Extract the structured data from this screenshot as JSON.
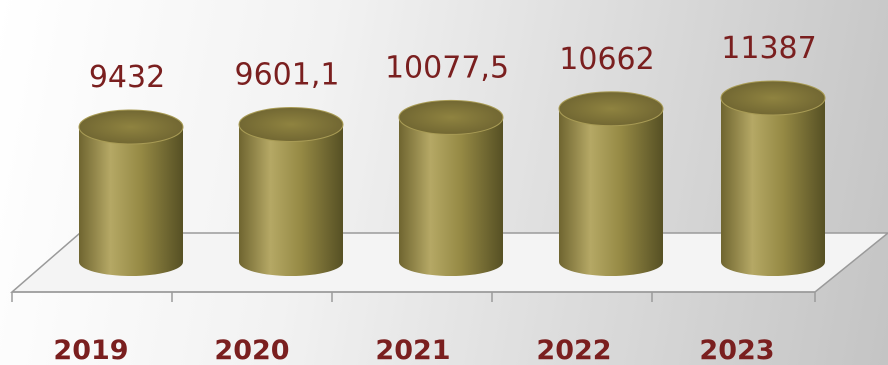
{
  "chart_data": {
    "type": "bar",
    "style": "3d-cylinder",
    "categories": [
      "2019",
      "2020",
      "2021",
      "2022",
      "2023"
    ],
    "values": [
      9432,
      9601.1,
      10077.5,
      10662,
      11387
    ],
    "value_labels": [
      "9432",
      "9601,1",
      "10077,5",
      "10662",
      "11387"
    ],
    "title": "",
    "xlabel": "",
    "ylabel": "",
    "grid": false,
    "legend": "none",
    "colors": {
      "bar_light": "#b8ab6a",
      "bar_mid": "#948843",
      "bar_dark": "#5e5526",
      "bar_top": "#8a7e3c",
      "label": "#7a1f1f",
      "floor": "#f4f4f4",
      "floor_edge": "#9a9a9a"
    }
  }
}
